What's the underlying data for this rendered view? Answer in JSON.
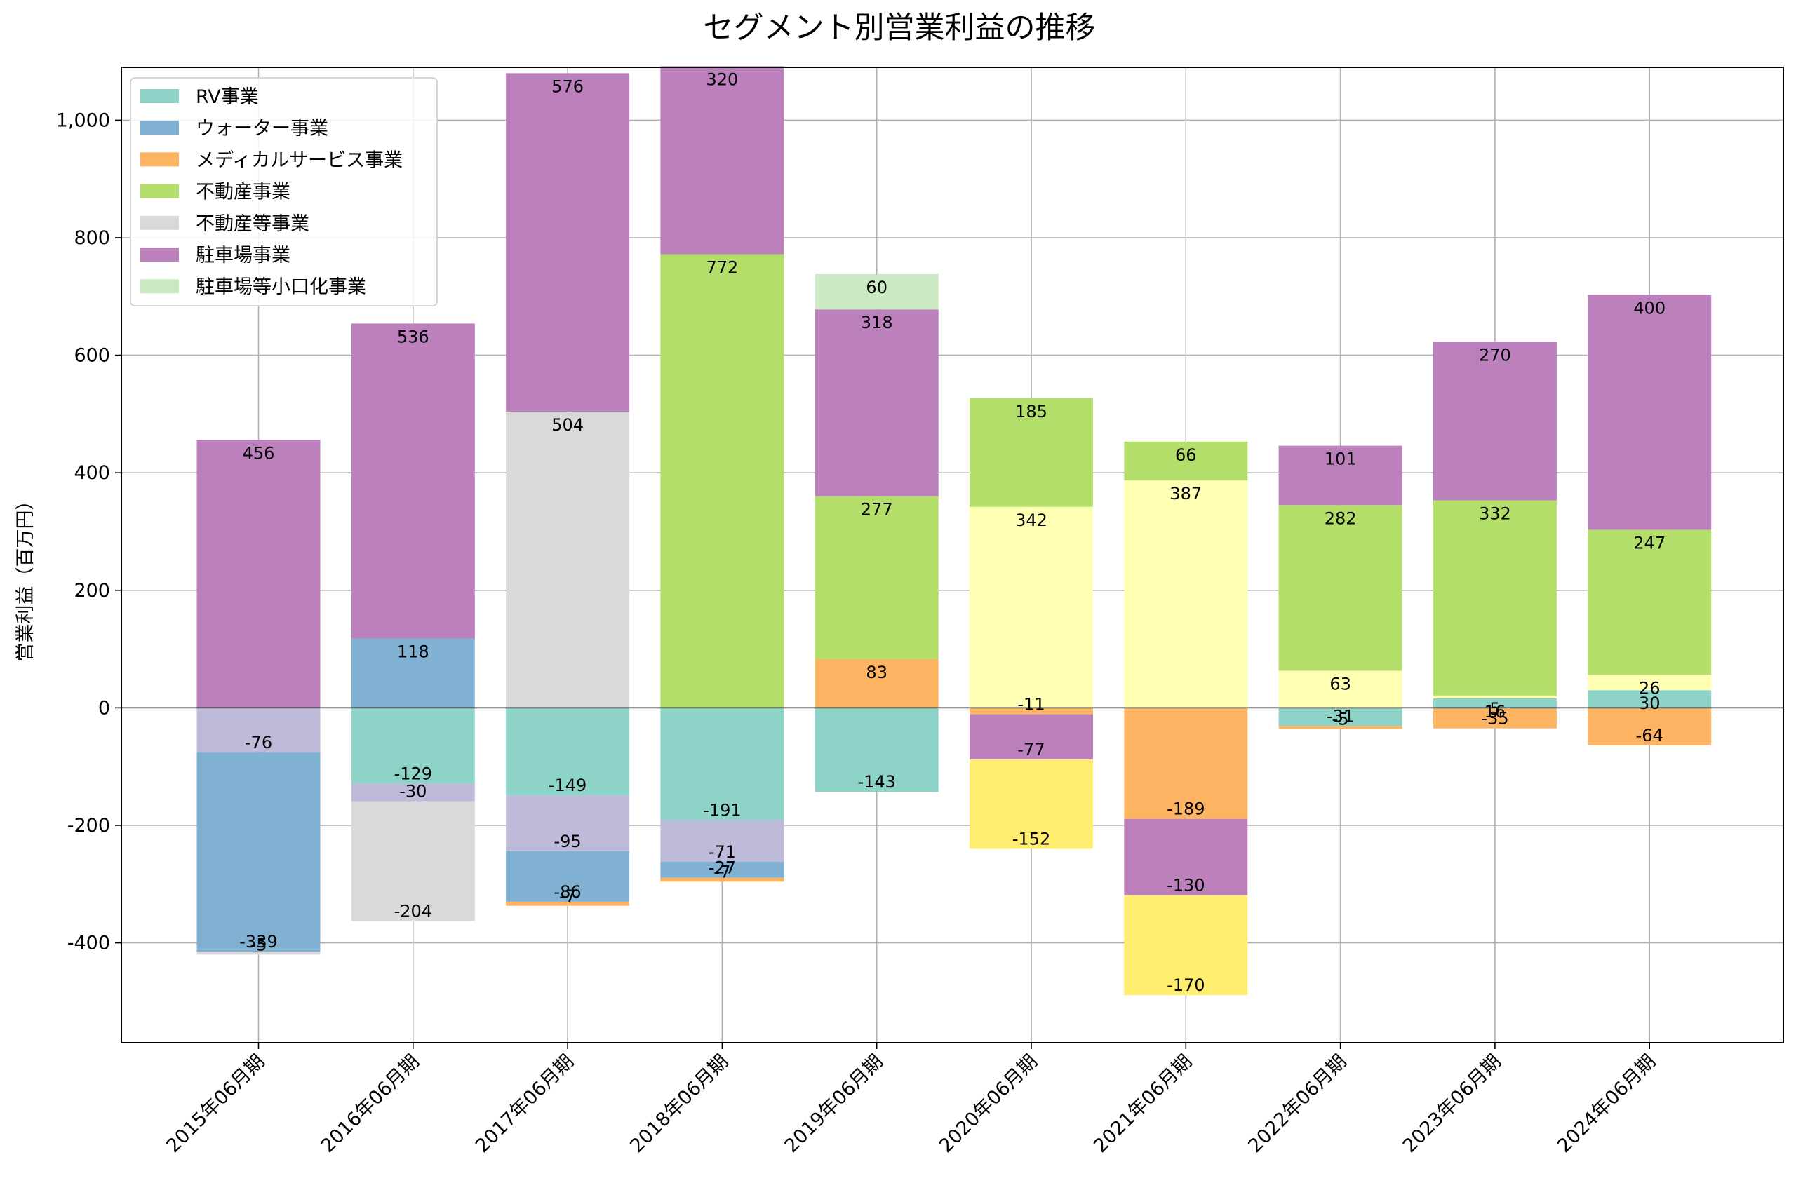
{
  "chart_data": {
    "type": "bar",
    "stacked": true,
    "title": "セグメント別営業利益の推移",
    "xlabel": "",
    "ylabel": "営業利益（百万円）",
    "ylim": [
      -570,
      1090
    ],
    "yticks": [
      -400,
      -200,
      0,
      200,
      400,
      600,
      800,
      1000
    ],
    "ytick_labels": [
      "-400",
      "-200",
      "0",
      "200",
      "400",
      "600",
      "800",
      "1,000"
    ],
    "grid": true,
    "legend_position": "upper left",
    "categories": [
      "2015年06月期",
      "2016年06月期",
      "2017年06月期",
      "2018年06月期",
      "2019年06月期",
      "2020年06月期",
      "2021年06月期",
      "2022年06月期",
      "2023年06月期",
      "2024年06月期"
    ],
    "legend": [
      {
        "name": "RV事業",
        "color": "#8dd3c7"
      },
      {
        "name": "ウォーター事業",
        "color": "#80b1d3"
      },
      {
        "name": "メディカルサービス事業",
        "color": "#fdb462"
      },
      {
        "name": "不動産事業",
        "color": "#b3de69"
      },
      {
        "name": "不動産等事業",
        "color": "#d9d9d9"
      },
      {
        "name": "駐車場事業",
        "color": "#bc80bd"
      },
      {
        "name": "駐車場等小口化事業",
        "color": "#ccebc5"
      }
    ],
    "stacks": [
      {
        "positive": [
          {
            "color": "#bc80bd",
            "value": 456
          }
        ],
        "negative": [
          {
            "color": "#bebada",
            "value": -76
          },
          {
            "color": "#80b1d3",
            "value": -339
          },
          {
            "color": "#d9d9d9",
            "value": -5
          }
        ]
      },
      {
        "positive": [
          {
            "color": "#80b1d3",
            "value": 118
          },
          {
            "color": "#bc80bd",
            "value": 536
          }
        ],
        "negative": [
          {
            "color": "#8dd3c7",
            "value": -129
          },
          {
            "color": "#bebada",
            "value": -30
          },
          {
            "color": "#d9d9d9",
            "value": -204
          }
        ]
      },
      {
        "positive": [
          {
            "color": "#d9d9d9",
            "value": 504
          },
          {
            "color": "#bc80bd",
            "value": 576
          }
        ],
        "negative": [
          {
            "color": "#8dd3c7",
            "value": -149
          },
          {
            "color": "#bebada",
            "value": -95
          },
          {
            "color": "#80b1d3",
            "value": -86
          },
          {
            "color": "#fdb462",
            "value": -7
          }
        ]
      },
      {
        "positive": [
          {
            "color": "#b3de69",
            "value": 772
          },
          {
            "color": "#bc80bd",
            "value": 320
          }
        ],
        "negative": [
          {
            "color": "#8dd3c7",
            "value": -191
          },
          {
            "color": "#bebada",
            "value": -71
          },
          {
            "color": "#80b1d3",
            "value": -27
          },
          {
            "color": "#fdb462",
            "value": -7
          }
        ]
      },
      {
        "positive": [
          {
            "color": "#fdb462",
            "value": 83
          },
          {
            "color": "#b3de69",
            "value": 277
          },
          {
            "color": "#bc80bd",
            "value": 318
          },
          {
            "color": "#ccebc5",
            "value": 60
          }
        ],
        "negative": [
          {
            "color": "#8dd3c7",
            "value": -143
          }
        ]
      },
      {
        "positive": [
          {
            "color": "#ffffb3",
            "value": 342
          },
          {
            "color": "#b3de69",
            "value": 185
          }
        ],
        "negative": [
          {
            "color": "#fdb462",
            "value": -11
          },
          {
            "color": "#bc80bd",
            "value": -77
          },
          {
            "color": "#ffed6f",
            "value": -152
          }
        ]
      },
      {
        "positive": [
          {
            "color": "#ffffb3",
            "value": 387
          },
          {
            "color": "#b3de69",
            "value": 66
          }
        ],
        "negative": [
          {
            "color": "#fdb462",
            "value": -189
          },
          {
            "color": "#bc80bd",
            "value": -130
          },
          {
            "color": "#ffed6f",
            "value": -170
          }
        ]
      },
      {
        "positive": [
          {
            "color": "#ffffb3",
            "value": 63
          },
          {
            "color": "#b3de69",
            "value": 282
          },
          {
            "color": "#bc80bd",
            "value": 101
          }
        ],
        "negative": [
          {
            "color": "#8dd3c7",
            "value": -31
          },
          {
            "color": "#fdb462",
            "value": -5
          }
        ]
      },
      {
        "positive": [
          {
            "color": "#8dd3c7",
            "value": 16
          },
          {
            "color": "#ffffb3",
            "value": 5
          },
          {
            "color": "#b3de69",
            "value": 332
          },
          {
            "color": "#bc80bd",
            "value": 270
          }
        ],
        "negative": [
          {
            "color": "#fdb462",
            "value": -35
          }
        ]
      },
      {
        "positive": [
          {
            "color": "#8dd3c7",
            "value": 30
          },
          {
            "color": "#ffffb3",
            "value": 26
          },
          {
            "color": "#b3de69",
            "value": 247
          },
          {
            "color": "#bc80bd",
            "value": 400
          }
        ],
        "negative": [
          {
            "color": "#fdb462",
            "value": -64
          }
        ]
      }
    ]
  }
}
